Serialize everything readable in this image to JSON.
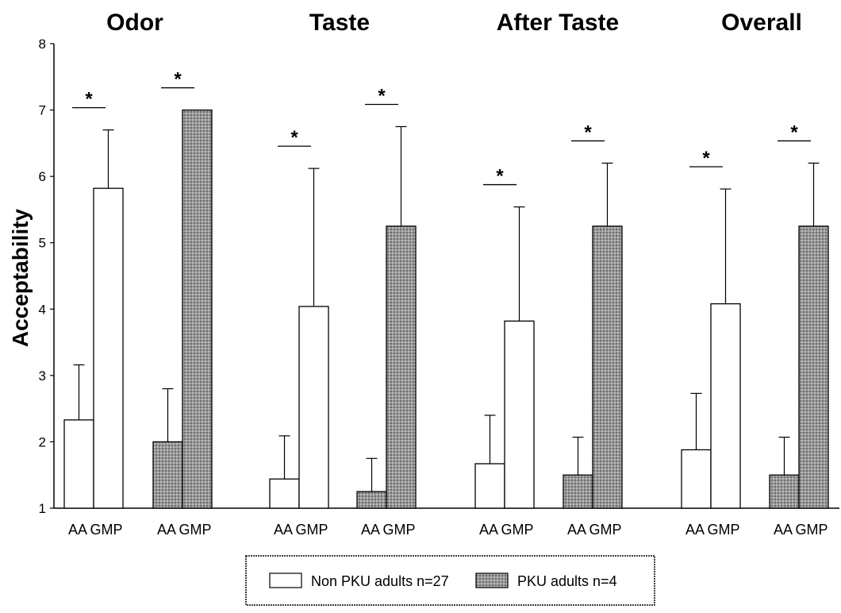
{
  "chart_data": {
    "type": "bar",
    "ylabel": "Acceptability",
    "ylim": [
      1,
      8
    ],
    "yticks": [
      "1",
      "2",
      "3",
      "4",
      "5",
      "6",
      "7",
      "8"
    ],
    "grid": false,
    "legend_position": "bottom-center",
    "panels": [
      {
        "title": "Odor",
        "groups": [
          {
            "series": "Non PKU adults n=27",
            "categories": [
              "AA",
              "GMP"
            ],
            "values": [
              2.33,
              5.82
            ],
            "errors": [
              0.83,
              0.88
            ],
            "significant": true
          },
          {
            "series": "PKU adults n=4",
            "categories": [
              "AA",
              "GMP"
            ],
            "values": [
              2.0,
              7.0
            ],
            "errors": [
              0.8,
              0.0
            ],
            "significant": true
          }
        ]
      },
      {
        "title": "Taste",
        "groups": [
          {
            "series": "Non PKU adults n=27",
            "categories": [
              "AA",
              "GMP"
            ],
            "values": [
              1.44,
              4.04
            ],
            "errors": [
              0.65,
              2.08
            ],
            "significant": true
          },
          {
            "series": "PKU adults n=4",
            "categories": [
              "AA",
              "GMP"
            ],
            "values": [
              1.25,
              5.25
            ],
            "errors": [
              0.5,
              1.5
            ],
            "significant": true
          }
        ]
      },
      {
        "title": "After Taste",
        "groups": [
          {
            "series": "Non PKU adults n=27",
            "categories": [
              "AA",
              "GMP"
            ],
            "values": [
              1.67,
              3.82
            ],
            "errors": [
              0.73,
              1.72
            ],
            "significant": true
          },
          {
            "series": "PKU adults n=4",
            "categories": [
              "AA",
              "GMP"
            ],
            "values": [
              1.5,
              5.25
            ],
            "errors": [
              0.57,
              0.95
            ],
            "significant": true
          }
        ]
      },
      {
        "title": "Overall",
        "groups": [
          {
            "series": "Non PKU adults n=27",
            "categories": [
              "AA",
              "GMP"
            ],
            "values": [
              1.88,
              4.08
            ],
            "errors": [
              0.85,
              1.73
            ],
            "significant": true
          },
          {
            "series": "PKU adults n=4",
            "categories": [
              "AA",
              "GMP"
            ],
            "values": [
              1.5,
              5.25
            ],
            "errors": [
              0.57,
              0.95
            ],
            "significant": true
          }
        ]
      }
    ],
    "legend": [
      {
        "label": "Non PKU adults n=27",
        "fill": "#ffffff"
      },
      {
        "label": "PKU adults n=4",
        "fill": "#8f8f8f"
      }
    ],
    "significance_marker": "*",
    "colors": {
      "non_pku_fill": "#ffffff",
      "pku_fill": "#8f8f8f",
      "stroke": "#000000"
    }
  }
}
